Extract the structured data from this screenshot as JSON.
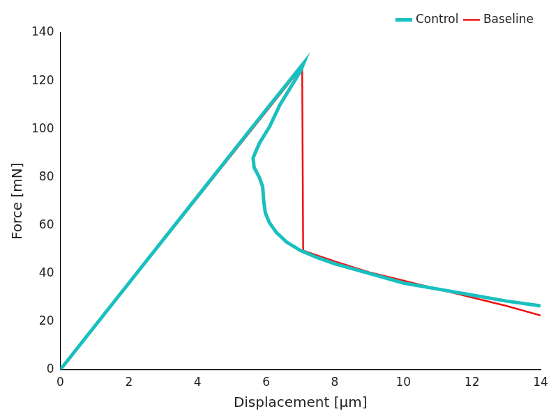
{
  "chart_data": {
    "type": "line",
    "x_label": "Displacement [μm]",
    "y_label": "Force [mN]",
    "xlim": [
      0,
      14
    ],
    "xticks": [
      0,
      2,
      4,
      6,
      8,
      10,
      12,
      14
    ],
    "ylim": [
      0,
      140
    ],
    "yticks": [
      0,
      20,
      40,
      60,
      80,
      100,
      120,
      140
    ],
    "grid": false,
    "legend": "upper right",
    "series": [
      {
        "name": "Control",
        "color": "#1abfbf",
        "x": [
          0,
          2,
          4,
          6,
          7.1,
          7.0,
          6.7,
          6.4,
          6.1,
          5.8,
          5.62,
          5.65,
          5.8,
          5.9,
          5.93,
          5.98,
          6.1,
          6.3,
          6.6,
          7.0,
          7.5,
          8,
          9,
          10,
          11,
          12,
          13,
          14
        ],
        "values": [
          0,
          36,
          72,
          108,
          127.5,
          124,
          117,
          110,
          101,
          94,
          88,
          84,
          80,
          76,
          70,
          65,
          61,
          57,
          53,
          49.5,
          46.5,
          44,
          40,
          36,
          33.5,
          31,
          28.5,
          26.5
        ]
      },
      {
        "name": "Baseline",
        "color": "#ee1111",
        "x": [
          0,
          7.05,
          7.08,
          8,
          9,
          10,
          11,
          12,
          13,
          14
        ],
        "values": [
          0,
          126,
          49.5,
          45,
          40.5,
          37,
          33.5,
          30,
          26.5,
          22.5
        ]
      }
    ]
  }
}
